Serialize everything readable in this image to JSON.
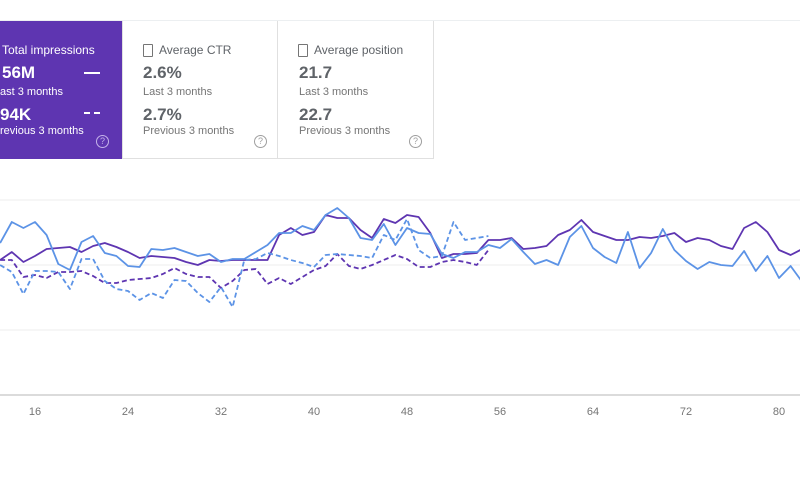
{
  "cards": {
    "impressions": {
      "label": "Total impressions",
      "current_value": "56M",
      "current_period": "ast 3 months",
      "previous_value": "94K",
      "previous_period": "revious 3 months",
      "selected": true,
      "help_icon": "?"
    },
    "ctr": {
      "label": "Average CTR",
      "current_value": "2.6%",
      "current_period": "Last 3 months",
      "previous_value": "2.7%",
      "previous_period": "Previous 3 months",
      "selected": false,
      "help_icon": "?"
    },
    "position": {
      "label": "Average position",
      "current_value": "21.7",
      "current_period": "Last 3 months",
      "previous_value": "22.7",
      "previous_period": "Previous 3 months",
      "selected": false,
      "help_icon": "?"
    }
  },
  "colors": {
    "impressions": "#5e35b1",
    "clicks": "#5c93e6",
    "grid": "#eeeeee"
  },
  "chart_data": {
    "type": "line",
    "x_ticks": [
      "16",
      "24",
      "32",
      "40",
      "48",
      "56",
      "64",
      "72",
      "80"
    ],
    "xlim": [
      13,
      82
    ],
    "ylim": [
      0,
      195
    ],
    "y_gridlines": [
      65,
      130,
      195
    ],
    "y_tick_labels_visible": false,
    "grid": true,
    "series": [
      {
        "style": "solid",
        "color": "#5e35b1",
        "x_start": 13,
        "values": [
          135,
          143,
          133,
          139,
          146,
          147,
          148,
          143,
          149,
          152,
          148,
          143,
          137,
          139,
          138,
          137,
          133,
          130,
          135,
          134,
          135,
          135,
          135,
          135,
          160,
          167,
          160,
          163,
          180,
          177,
          177,
          165,
          157,
          176,
          172,
          180,
          178,
          162,
          137,
          141,
          141,
          142,
          155,
          155,
          157,
          146,
          147,
          149,
          160,
          165,
          175,
          163,
          159,
          155,
          155,
          158,
          157,
          159,
          162,
          153,
          157,
          155,
          149,
          146,
          167,
          173,
          163,
          145,
          140,
          146
        ]
      },
      {
        "style": "solid",
        "color": "#5c93e6",
        "x_start": 13,
        "values": [
          152,
          173,
          167,
          173,
          160,
          131,
          125,
          153,
          159,
          142,
          139,
          129,
          128,
          146,
          145,
          147,
          143,
          139,
          141,
          133,
          136,
          136,
          143,
          150,
          162,
          162,
          169,
          165,
          180,
          187,
          177,
          157,
          155,
          171,
          150,
          167,
          162,
          161,
          141,
          137,
          143,
          143,
          150,
          147,
          156,
          143,
          131,
          135,
          130,
          158,
          169,
          147,
          138,
          132,
          163,
          127,
          142,
          166,
          145,
          134,
          126,
          133,
          130,
          129,
          144,
          124,
          139,
          117,
          129,
          113
        ]
      },
      {
        "style": "dashed",
        "color": "#5e35b1",
        "x_start": 13,
        "values": [
          135,
          135,
          118,
          120,
          117,
          123,
          123,
          124,
          119,
          112,
          112,
          115,
          116,
          117,
          121,
          127,
          121,
          118,
          118,
          107,
          114,
          125,
          126,
          111,
          117,
          111,
          118,
          125,
          129,
          141,
          129,
          126,
          130,
          135,
          140,
          136,
          128,
          128,
          133,
          135,
          133,
          130,
          145
        ]
      },
      {
        "style": "dashed",
        "color": "#5c93e6",
        "x_start": 13,
        "values": [
          130,
          123,
          101,
          124,
          124,
          123,
          106,
          136,
          136,
          114,
          106,
          104,
          95,
          102,
          97,
          115,
          114,
          102,
          93,
          108,
          88,
          135,
          136,
          142,
          139,
          135,
          132,
          128,
          140,
          141,
          140,
          139,
          137,
          160,
          155,
          176,
          145,
          137,
          139,
          173,
          155,
          157,
          159
        ]
      }
    ]
  }
}
